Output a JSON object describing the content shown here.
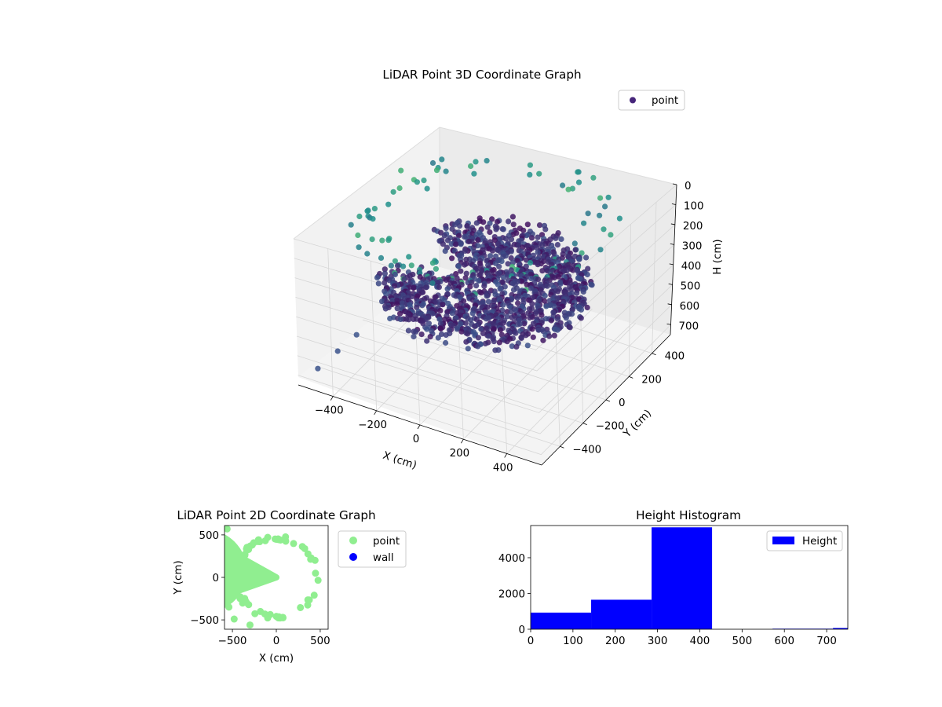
{
  "colors": {
    "wall": "#0000ff",
    "point2d": "#90ee90",
    "histogram": "#0000ff",
    "legend_point3d": "#46257a"
  },
  "chart_data": [
    {
      "type": "scatter",
      "projection": "3d",
      "title": "LiDAR Point 3D Coordinate Graph",
      "xlabel": "X (cm)",
      "ylabel": "Y (cm)",
      "zlabel": "H (cm)",
      "xlim": [
        -560,
        560
      ],
      "ylim": [
        -560,
        560
      ],
      "zlim": [
        0,
        750
      ],
      "z_inverted": true,
      "x_ticks": [
        "−400",
        "−200",
        "0",
        "200",
        "400"
      ],
      "y_ticks": [
        "−400",
        "−200",
        "0",
        "200",
        "400"
      ],
      "z_ticks": [
        "0",
        "100",
        "200",
        "300",
        "400",
        "500",
        "600",
        "700"
      ],
      "colormap": "viridis",
      "legend": {
        "entries": [
          "point"
        ],
        "placement": "top-right"
      },
      "grid": true,
      "structure": {
        "room_radius_cm": 440,
        "floor_height_cm": [
          300,
          420
        ],
        "ceiling_height_cm": 10,
        "sample_points": [
          {
            "x": -430,
            "y": -200,
            "h": 20
          },
          {
            "x": -380,
            "y": -120,
            "h": 15
          },
          {
            "x": -300,
            "y": 50,
            "h": 5
          },
          {
            "x": -200,
            "y": 250,
            "h": 10
          },
          {
            "x": 0,
            "y": 350,
            "h": 8
          },
          {
            "x": 200,
            "y": 400,
            "h": 12
          },
          {
            "x": 350,
            "y": 380,
            "h": 30
          },
          {
            "x": 450,
            "y": 300,
            "h": 60
          },
          {
            "x": -500,
            "y": -500,
            "h": 680
          },
          {
            "x": -450,
            "y": -420,
            "h": 620
          },
          {
            "x": -400,
            "y": -350,
            "h": 560
          },
          {
            "x": -300,
            "y": -250,
            "h": 500
          },
          {
            "x": -200,
            "y": -150,
            "h": 450
          }
        ]
      }
    },
    {
      "type": "scatter",
      "title": "LiDAR Point 2D Coordinate Graph",
      "xlabel": "X (cm)",
      "ylabel": "Y (cm)",
      "xlim": [
        -590,
        590
      ],
      "ylim": [
        -610,
        610
      ],
      "x_ticks": [
        "−500",
        "0",
        "500"
      ],
      "y_ticks": [
        "−500",
        "0",
        "500"
      ],
      "series": [
        {
          "name": "point",
          "color": "#90ee90",
          "disk_radius_cm": 460,
          "notch_angle_deg": [
            150,
            200
          ],
          "outliers": [
            {
              "x": -560,
              "y": 570
            },
            {
              "x": -540,
              "y": -350
            },
            {
              "x": -480,
              "y": -490
            },
            {
              "x": -300,
              "y": -560
            },
            {
              "x": -560,
              "y": -200
            }
          ]
        },
        {
          "name": "wall",
          "color": "#0000ff",
          "values": []
        }
      ],
      "legend": {
        "entries": [
          "point",
          "wall"
        ],
        "placement": "outside-right"
      }
    },
    {
      "type": "bar",
      "title": "Height Histogram",
      "xlabel": "",
      "ylabel": "",
      "xlim": [
        0,
        750
      ],
      "ylim": [
        0,
        5800
      ],
      "x_ticks": [
        "0",
        "100",
        "200",
        "300",
        "400",
        "500",
        "600",
        "700"
      ],
      "y_ticks": [
        "0",
        "2000",
        "4000"
      ],
      "bin_edges": [
        0,
        143,
        286,
        429,
        572,
        715,
        858
      ],
      "values": [
        930,
        1650,
        5700,
        0,
        30,
        70
      ],
      "series": [
        {
          "name": "Height",
          "color": "#0000ff"
        }
      ],
      "legend": {
        "entries": [
          "Height"
        ],
        "placement": "top-right"
      }
    }
  ]
}
